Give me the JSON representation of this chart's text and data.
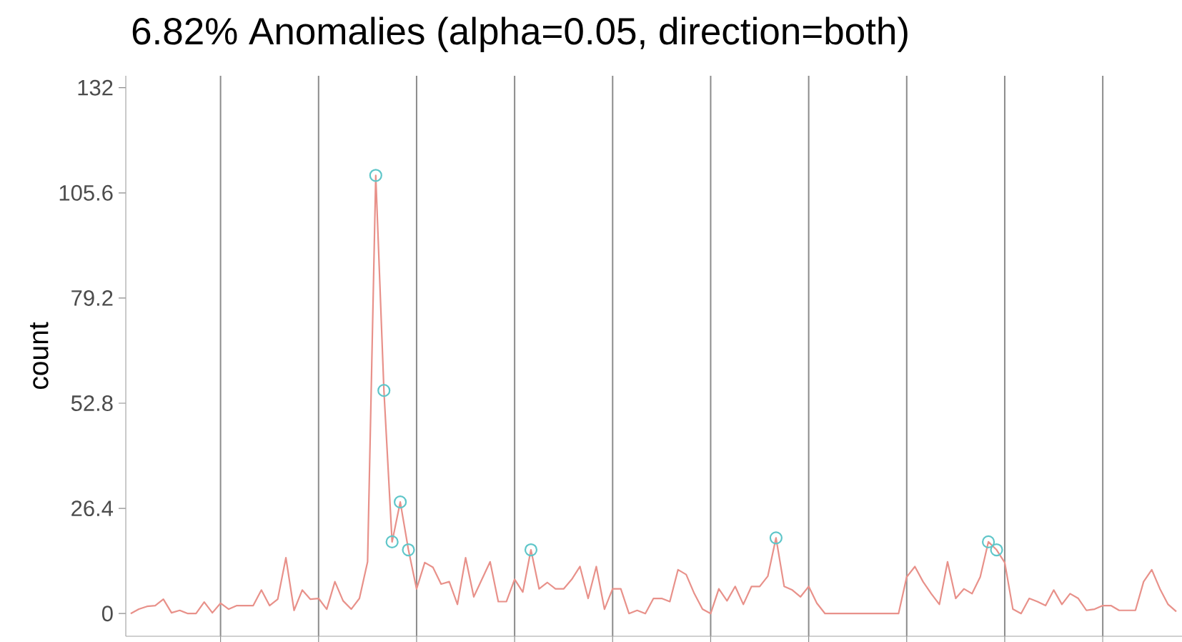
{
  "chart_data": {
    "type": "line",
    "title": "6.82% Anomalies (alpha=0.05, direction=both)",
    "ylabel": "count",
    "categories": [
      null,
      null,
      null,
      null,
      null,
      null,
      null,
      null,
      null,
      null,
      null,
      null,
      null,
      null,
      null,
      null,
      null,
      null,
      null,
      null,
      null,
      null,
      null,
      null,
      null,
      null,
      null,
      null,
      null,
      null,
      null,
      null,
      null,
      null,
      null,
      null,
      null,
      null,
      null,
      null,
      null,
      null,
      null,
      null,
      null,
      null,
      null,
      null,
      null,
      null,
      null,
      null,
      null,
      null,
      null,
      null,
      null,
      null,
      null,
      null,
      null,
      null,
      null,
      null,
      null,
      null,
      null,
      null,
      null,
      null,
      null,
      null,
      null,
      null,
      null,
      null,
      null,
      null,
      null,
      null,
      null,
      null,
      null,
      null,
      null,
      null,
      null,
      null,
      null,
      null,
      null,
      null,
      null,
      null,
      null,
      null,
      null,
      null,
      null,
      null,
      null,
      null,
      null,
      null,
      null,
      null,
      null,
      null,
      null,
      null,
      null,
      null,
      null,
      null,
      null,
      null,
      null,
      null,
      null,
      null,
      null,
      null,
      null,
      null,
      null,
      null,
      null,
      null,
      null
    ],
    "series": [
      {
        "color": "#e8918a",
        "values": [
          0,
          1.1,
          1.8,
          2,
          3.6,
          0.2,
          0.8,
          0,
          0,
          2.9,
          0.2,
          2.6,
          1.1,
          2,
          2,
          2,
          5.9,
          2,
          3.6,
          14,
          0.8,
          5.9,
          3.6,
          3.8,
          1.1,
          8,
          3.2,
          1.1,
          3.8,
          13,
          110,
          56,
          18,
          28,
          16,
          6.2,
          12.8,
          11.6,
          7.4,
          8,
          2.3,
          14,
          4.2,
          8.6,
          13,
          3,
          3,
          8.6,
          5.4,
          16,
          6.2,
          7.8,
          6.2,
          6.2,
          8.6,
          11.8,
          3.8,
          11.8,
          1.1,
          6.2,
          6.2,
          0,
          0.8,
          0,
          3.8,
          3.8,
          3,
          11,
          9.8,
          5,
          1.1,
          0,
          6.2,
          3.2,
          6.8,
          2.3,
          6.8,
          6.8,
          9.4,
          19,
          6.8,
          5.9,
          4.2,
          6.8,
          2.6,
          0,
          0,
          0,
          0,
          0,
          0,
          0,
          0,
          0,
          0,
          9.2,
          11.8,
          8,
          5,
          2.3,
          13,
          3.8,
          6.2,
          5,
          9.2,
          18,
          16,
          12.8,
          1.1,
          0,
          3.8,
          3,
          2,
          5.9,
          2.3,
          5,
          3.8,
          0.8,
          1.1,
          2,
          2,
          0.8,
          0.8,
          0.8,
          8,
          11,
          6.2,
          2.3,
          0.5
        ]
      },
      {
        "type": "scatter",
        "marker": "circle",
        "color": "#5fc6c9",
        "values": [
          null,
          null,
          null,
          null,
          null,
          null,
          null,
          null,
          null,
          null,
          null,
          null,
          null,
          null,
          null,
          null,
          null,
          null,
          null,
          null,
          null,
          null,
          null,
          null,
          null,
          null,
          null,
          null,
          null,
          null,
          110,
          56,
          18,
          28,
          16,
          null,
          null,
          null,
          null,
          null,
          null,
          null,
          null,
          null,
          null,
          null,
          null,
          null,
          null,
          16,
          null,
          null,
          null,
          null,
          null,
          null,
          null,
          null,
          null,
          null,
          null,
          null,
          null,
          null,
          null,
          null,
          null,
          null,
          null,
          null,
          null,
          null,
          null,
          null,
          null,
          null,
          null,
          null,
          null,
          19,
          null,
          null,
          null,
          null,
          null,
          null,
          null,
          null,
          null,
          null,
          null,
          null,
          null,
          null,
          null,
          null,
          null,
          null,
          null,
          null,
          null,
          null,
          null,
          null,
          null,
          18,
          16,
          null,
          null,
          null,
          null,
          null,
          null,
          null,
          null,
          null,
          null,
          null,
          null,
          null,
          null,
          null,
          null,
          null,
          null,
          null,
          null,
          null,
          null
        ]
      }
    ],
    "ylim": [
      -5.7,
      135
    ],
    "yticks": [
      0,
      26.4,
      52.8,
      79.2,
      105.6,
      132
    ],
    "grid": "x",
    "tick_labels": "y"
  }
}
